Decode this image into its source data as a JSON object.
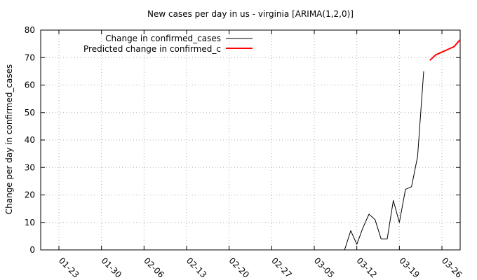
{
  "chart_data": {
    "type": "line",
    "title": "New cases per day in us - virginia [ARIMA(1,2,0)]",
    "xlabel": "",
    "ylabel": "Change per day in confirmed_cases",
    "ylim": [
      0,
      80
    ],
    "yticks": [
      "0",
      "10",
      "20",
      "30",
      "40",
      "50",
      "60",
      "70",
      "80"
    ],
    "x_tick_labels": [
      "01-23",
      "01-30",
      "02-06",
      "02-13",
      "02-20",
      "02-27",
      "03-05",
      "03-12",
      "03-19",
      "03-26"
    ],
    "x_range_days": [
      -2,
      67
    ],
    "x_day_zero": "01-22",
    "grid": true,
    "legend_position": "top-left",
    "series": [
      {
        "name": "Change in confirmed_cases",
        "color": "#000000",
        "x": [
          1,
          48,
          49,
          50,
          51,
          52,
          53,
          54,
          55,
          56,
          57,
          58,
          59,
          60,
          61
        ],
        "values": [
          0,
          0,
          7,
          2,
          8,
          13,
          11,
          4,
          4,
          18,
          10,
          22,
          23,
          34,
          65
        ]
      },
      {
        "name": "Predicted change in confirmed_c",
        "color": "#ff0000",
        "x": [
          62,
          63,
          64,
          65,
          66,
          67
        ],
        "values": [
          69,
          71,
          72,
          73,
          74,
          76.5
        ]
      }
    ],
    "note": "x values are day offsets from 01-22; last predicted point ~77 at end"
  }
}
